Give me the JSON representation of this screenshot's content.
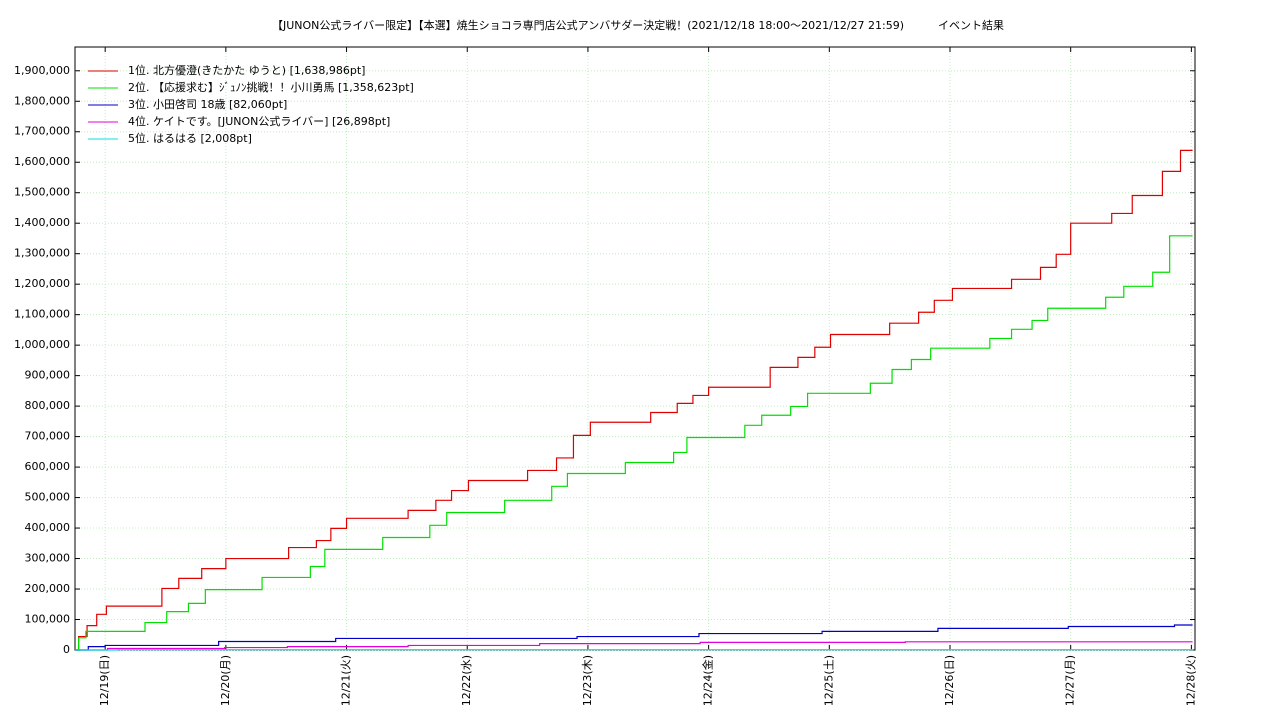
{
  "chart_data": {
    "type": "step-line",
    "title": "【JUNON公式ライバー限定】【本選】焼生ショコラ専門店公式アンバサダー決定戦！(2021/12/18 18:00～2021/12/27 21:59)",
    "subtitle": "イベント結果",
    "xlim": [
      -0.25,
      9.03
    ],
    "xticks": [
      {
        "value": 0,
        "label": "12/19(日)"
      },
      {
        "value": 1,
        "label": "12/20(月)"
      },
      {
        "value": 2,
        "label": "12/21(火)"
      },
      {
        "value": 3,
        "label": "12/22(水)"
      },
      {
        "value": 4,
        "label": "12/23(木)"
      },
      {
        "value": 5,
        "label": "12/24(金)"
      },
      {
        "value": 6,
        "label": "12/25(土)"
      },
      {
        "value": 7,
        "label": "12/26(日)"
      },
      {
        "value": 8,
        "label": "12/27(月)"
      },
      {
        "value": 9,
        "label": "12/28(火)"
      }
    ],
    "ylim": [
      0,
      1978000
    ],
    "yticks": [
      0,
      {
        "value": 100000,
        "label": "100,000"
      },
      {
        "value": 200000,
        "label": "200,000"
      },
      {
        "value": 300000,
        "label": "300,000"
      },
      {
        "value": 400000,
        "label": "400,000"
      },
      {
        "value": 500000,
        "label": "500,000"
      },
      {
        "value": 600000,
        "label": "600,000"
      },
      {
        "value": 700000,
        "label": "700,000"
      },
      {
        "value": 800000,
        "label": "800,000"
      },
      {
        "value": 900000,
        "label": "900,000"
      },
      {
        "value": 1000000,
        "label": "1,000,000"
      },
      {
        "value": 1100000,
        "label": "1,100,000"
      },
      {
        "value": 1200000,
        "label": "1,200,000"
      },
      {
        "value": 1300000,
        "label": "1,300,000"
      },
      {
        "value": 1400000,
        "label": "1,400,000"
      },
      {
        "value": 1500000,
        "label": "1,500,000"
      },
      {
        "value": 1600000,
        "label": "1,600,000"
      },
      {
        "value": 1700000,
        "label": "1,700,000"
      },
      {
        "value": 1800000,
        "label": "1,800,000"
      },
      {
        "value": 1900000,
        "label": "1,900,000"
      }
    ],
    "grid": true,
    "legend": "upper left",
    "series": [
      {
        "name": "1位. 北方優澄(きたかた ゆうと) [1,638,986pt]",
        "color": "#e00000",
        "x": [
          -0.25,
          -0.22,
          -0.15,
          -0.07,
          0.01,
          0.47,
          0.61,
          0.8,
          1.0,
          1.52,
          1.75,
          1.87,
          2.0,
          2.51,
          2.74,
          2.87,
          3.01,
          3.5,
          3.74,
          3.88,
          4.02,
          4.52,
          4.74,
          4.87,
          5.0,
          5.51,
          5.74,
          5.88,
          6.01,
          6.5,
          6.74,
          6.87,
          7.02,
          7.51,
          7.75,
          7.88,
          8.0,
          8.34,
          8.51,
          8.76,
          8.91,
          9.01
        ],
        "values": [
          0,
          44000,
          80000,
          117000,
          144000,
          202000,
          235000,
          267000,
          300000,
          336000,
          359000,
          399000,
          432000,
          458000,
          491000,
          523000,
          556000,
          589000,
          630000,
          704000,
          747000,
          779000,
          809000,
          835000,
          862000,
          927000,
          960000,
          993000,
          1035000,
          1072000,
          1108000,
          1147000,
          1186000,
          1216000,
          1255000,
          1298000,
          1400000,
          1432000,
          1491000,
          1570000,
          1638986,
          1638986
        ]
      },
      {
        "name": "2位. 【応援求む】ｼﾞｭﾉﾝ挑戦！！小川勇馬 [1,358,623pt]",
        "color": "#00e000",
        "x": [
          -0.25,
          -0.22,
          -0.16,
          0.33,
          0.51,
          0.69,
          0.83,
          1.3,
          1.7,
          1.82,
          2.3,
          2.69,
          2.83,
          3.31,
          3.7,
          3.83,
          4.31,
          4.71,
          4.82,
          5.3,
          5.44,
          5.68,
          5.82,
          6.34,
          6.52,
          6.68,
          6.84,
          7.33,
          7.51,
          7.68,
          7.81,
          8.29,
          8.44,
          8.68,
          8.82,
          9.01
        ],
        "values": [
          0,
          40000,
          61000,
          90000,
          126000,
          153000,
          198000,
          238000,
          274000,
          330000,
          369000,
          409000,
          451000,
          491000,
          537000,
          579000,
          615000,
          648000,
          697000,
          737000,
          770000,
          799000,
          842000,
          875000,
          920000,
          953000,
          990000,
          1022000,
          1052000,
          1081000,
          1121000,
          1157000,
          1193000,
          1239000,
          1358623,
          1358623
        ]
      },
      {
        "name": "3位. 小田啓司 18歳 [82,060pt]",
        "color": "#0000c8",
        "x": [
          -0.25,
          -0.14,
          0,
          0.94,
          1.91,
          3.91,
          4.92,
          5.94,
          6.9,
          7.98,
          8.86,
          9.01
        ],
        "values": [
          0,
          11000,
          15000,
          28000,
          38000,
          44000,
          54000,
          61000,
          71000,
          77000,
          82060,
          82060
        ]
      },
      {
        "name": "4位. ケイトです。[JUNON公式ライバー] [26,898pt]",
        "color": "#e000e0",
        "x": [
          -0.25,
          0.02,
          0.99,
          1.51,
          2.51,
          3.6,
          4.93,
          6.63,
          9.01
        ],
        "values": [
          0,
          5000,
          8000,
          11000,
          15000,
          21000,
          25000,
          26898,
          26898
        ]
      },
      {
        "name": "5位. はるはる [2,008pt]",
        "color": "#00e0e0",
        "x": [
          -0.25,
          0.1,
          9.01
        ],
        "values": [
          0,
          1000,
          2008
        ]
      }
    ]
  }
}
